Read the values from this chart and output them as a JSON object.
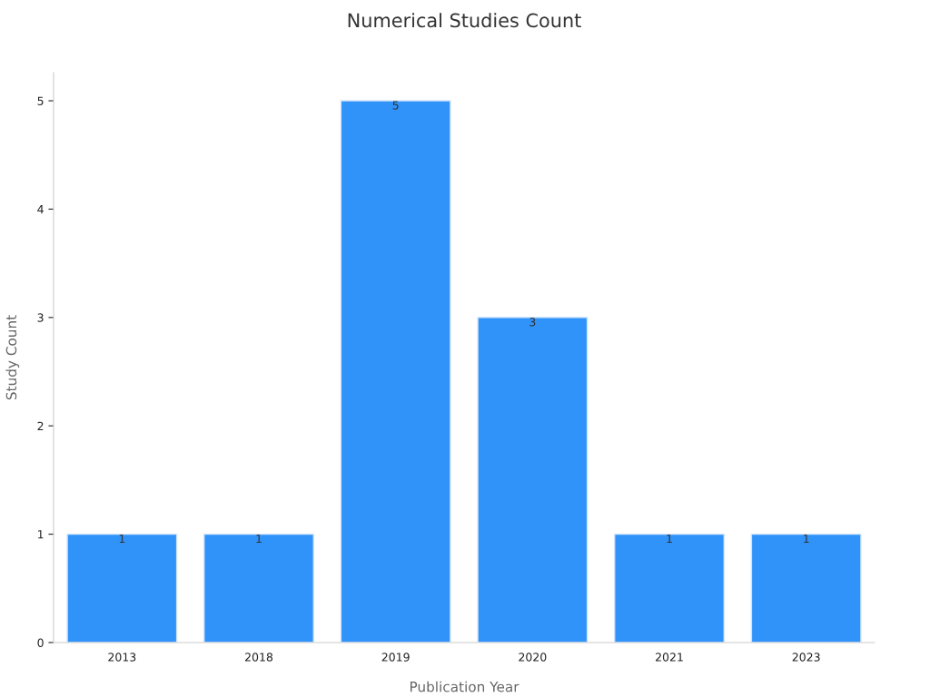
{
  "chart_data": {
    "type": "bar",
    "title": "Numerical Studies Count",
    "xlabel": "Publication Year",
    "ylabel": "Study Count",
    "categories": [
      "2013",
      "2018",
      "2019",
      "2020",
      "2021",
      "2023"
    ],
    "values": [
      1,
      1,
      5,
      3,
      1,
      1
    ],
    "color": "#2f93fa",
    "ylim": [
      0,
      5.26
    ],
    "yticks": [
      0,
      1,
      2,
      3,
      4,
      5
    ],
    "grid": false,
    "legend": false,
    "data_labels": true
  }
}
